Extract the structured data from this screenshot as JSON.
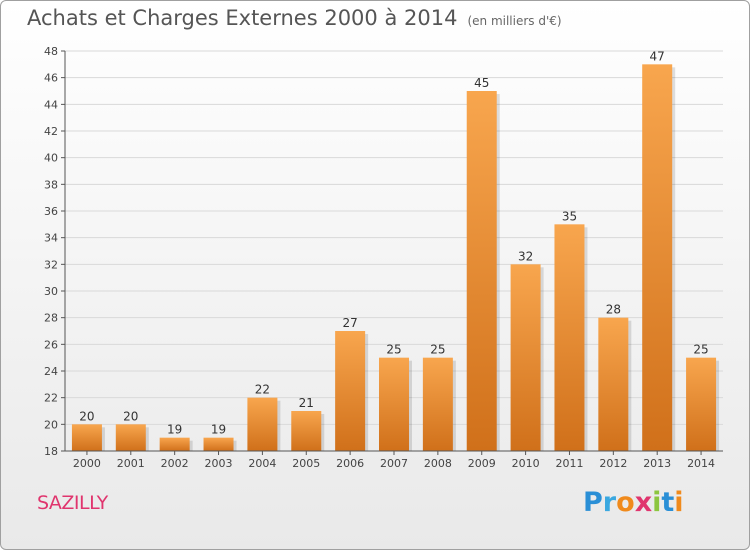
{
  "header": {
    "title": "Achats et Charges Externes 2000 à 2014",
    "unit": "(en milliers d'€)"
  },
  "footer": {
    "place": "SAZILLY",
    "brand_letters": [
      "P",
      "r",
      "o",
      "x",
      "i",
      "t",
      "i"
    ],
    "brand_colors": [
      "#2a8fd6",
      "#3aa8e0",
      "#f08a1c",
      "#e0356e",
      "#8cc63f",
      "#2a8fd6",
      "#f08a1c"
    ]
  },
  "colors": {
    "bar_light": "#f8a64e",
    "bar_dark": "#d0701a",
    "grid": "#d9d9d9",
    "axis": "#555555"
  },
  "chart_data": {
    "type": "bar",
    "title": "Achats et Charges Externes 2000 à 2014",
    "subtitle": "(en milliers d'€)",
    "categories": [
      "2000",
      "2001",
      "2002",
      "2003",
      "2004",
      "2005",
      "2006",
      "2007",
      "2008",
      "2009",
      "2010",
      "2011",
      "2012",
      "2013",
      "2014"
    ],
    "values": [
      20,
      20,
      19,
      19,
      22,
      21,
      27,
      25,
      25,
      45,
      32,
      35,
      28,
      47,
      25
    ],
    "ylim": [
      18,
      48
    ],
    "yticks": [
      18,
      20,
      22,
      24,
      26,
      28,
      30,
      32,
      34,
      36,
      38,
      40,
      42,
      44,
      46,
      48
    ],
    "grid": true,
    "xlabel": "",
    "ylabel": ""
  }
}
